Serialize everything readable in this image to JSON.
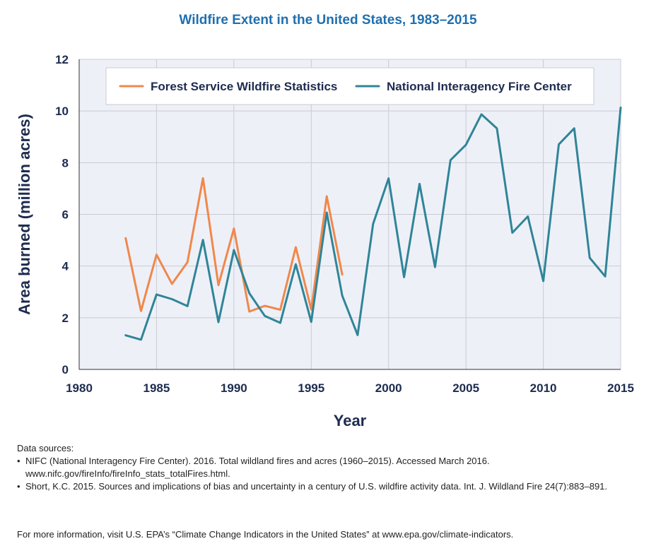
{
  "colors": {
    "title": "#1f6fb0",
    "axis_text": "#1d2b4f",
    "plot_bg": "#eef0f8",
    "grid": "#c9cbd4",
    "forest_service": "#f0884b",
    "nifc": "#2f8597"
  },
  "chart_data": {
    "type": "line",
    "title": "Wildfire Extent in the United States, 1983–2015",
    "xlabel": "Year",
    "ylabel": "Area burned (million acres)",
    "xlim": [
      1980,
      2015
    ],
    "ylim": [
      0,
      12
    ],
    "x_ticks": [
      1980,
      1985,
      1990,
      1995,
      2000,
      2005,
      2010,
      2015
    ],
    "y_ticks": [
      0,
      2,
      4,
      6,
      8,
      10,
      12
    ],
    "grid": true,
    "legend_position": "top",
    "series": [
      {
        "name": "Forest Service Wildfire Statistics",
        "color": "#f0884b",
        "points": [
          [
            1983,
            5.08
          ],
          [
            1984,
            2.26
          ],
          [
            1985,
            4.44
          ],
          [
            1986,
            3.31
          ],
          [
            1987,
            4.15
          ],
          [
            1988,
            7.4
          ],
          [
            1989,
            3.26
          ],
          [
            1990,
            5.45
          ],
          [
            1991,
            2.24
          ],
          [
            1992,
            2.46
          ],
          [
            1993,
            2.31
          ],
          [
            1994,
            4.73
          ],
          [
            1995,
            2.32
          ],
          [
            1996,
            6.7
          ],
          [
            1997,
            3.67
          ]
        ]
      },
      {
        "name": "National Interagency Fire Center",
        "color": "#2f8597",
        "points": [
          [
            1983,
            1.32
          ],
          [
            1984,
            1.15
          ],
          [
            1985,
            2.9
          ],
          [
            1986,
            2.72
          ],
          [
            1987,
            2.45
          ],
          [
            1988,
            5.01
          ],
          [
            1989,
            1.83
          ],
          [
            1990,
            4.62
          ],
          [
            1991,
            2.95
          ],
          [
            1992,
            2.07
          ],
          [
            1993,
            1.8
          ],
          [
            1994,
            4.07
          ],
          [
            1995,
            1.84
          ],
          [
            1996,
            6.07
          ],
          [
            1997,
            2.86
          ],
          [
            1998,
            1.33
          ],
          [
            1999,
            5.63
          ],
          [
            2000,
            7.39
          ],
          [
            2001,
            3.57
          ],
          [
            2002,
            7.18
          ],
          [
            2003,
            3.96
          ],
          [
            2004,
            8.1
          ],
          [
            2005,
            8.69
          ],
          [
            2006,
            9.87
          ],
          [
            2007,
            9.33
          ],
          [
            2008,
            5.29
          ],
          [
            2009,
            5.92
          ],
          [
            2010,
            3.42
          ],
          [
            2011,
            8.71
          ],
          [
            2012,
            9.33
          ],
          [
            2013,
            4.32
          ],
          [
            2014,
            3.6
          ],
          [
            2015,
            10.13
          ]
        ]
      }
    ]
  },
  "footer": {
    "sources_heading": "Data sources:",
    "sources": [
      "NIFC (National Interagency Fire Center). 2016. Total wildland fires and acres (1960–2015). Accessed March 2016. www.nifc.gov/fireInfo/fireInfo_stats_totalFires.html.",
      "Short, K.C. 2015. Sources and implications of bias and uncertainty in a century of U.S. wildfire activity data. Int. J. Wildland Fire 24(7):883–891."
    ],
    "more_info": "For more information, visit U.S. EPA’s “Climate Change Indicators in the United States” at www.epa.gov/climate-indicators."
  }
}
